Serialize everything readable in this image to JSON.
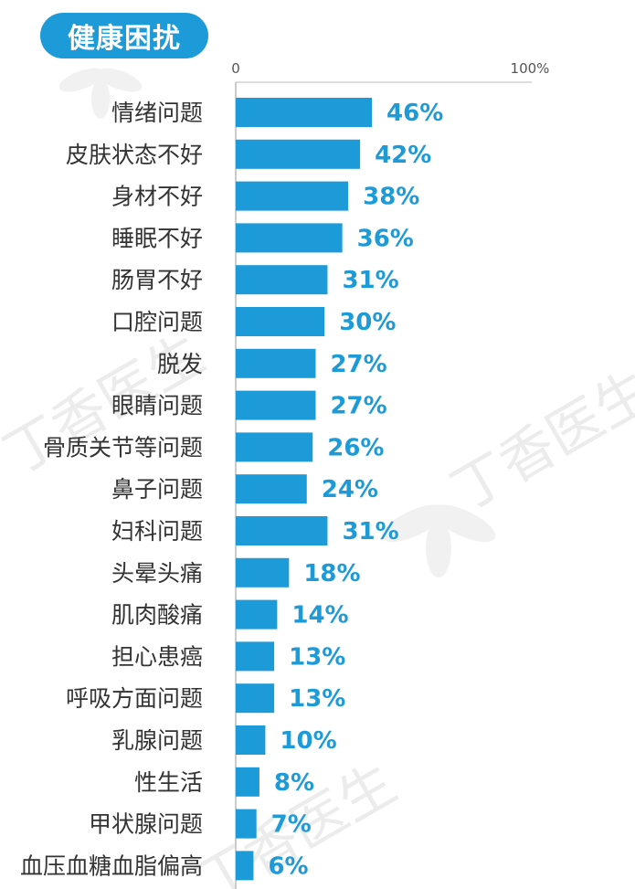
{
  "header": {
    "title": "健康困扰"
  },
  "colors": {
    "bar": "#1d9ad8",
    "accent": "#1d9ad8",
    "axis": "#bbbbbb",
    "text": "#333333",
    "watermark": "#e6e6e6"
  },
  "watermark": {
    "text": "丁香医生"
  },
  "chart_data": {
    "type": "bar",
    "orientation": "horizontal",
    "title": "健康困扰",
    "xlim": [
      0,
      100
    ],
    "xticks": [
      "0",
      "100%"
    ],
    "grid": false,
    "categories": [
      "情绪问题",
      "皮肤状态不好",
      "身材不好",
      "睡眠不好",
      "肠胃不好",
      "口腔问题",
      "脱发",
      "眼睛问题",
      "骨质关节等问题",
      "鼻子问题",
      "妇科问题",
      "头晕头痛",
      "肌肉酸痛",
      "担心患癌",
      "呼吸方面问题",
      "乳腺问题",
      "性生活",
      "甲状腺问题",
      "血压血糖血脂偏高"
    ],
    "values": [
      46,
      42,
      38,
      36,
      31,
      30,
      27,
      27,
      26,
      24,
      31,
      18,
      14,
      13,
      13,
      10,
      8,
      7,
      6
    ],
    "value_labels": [
      "46%",
      "42%",
      "38%",
      "36%",
      "31%",
      "30%",
      "27%",
      "27%",
      "26%",
      "24%",
      "31%",
      "18%",
      "14%",
      "13%",
      "13%",
      "10%",
      "8%",
      "7%",
      "6%"
    ]
  }
}
